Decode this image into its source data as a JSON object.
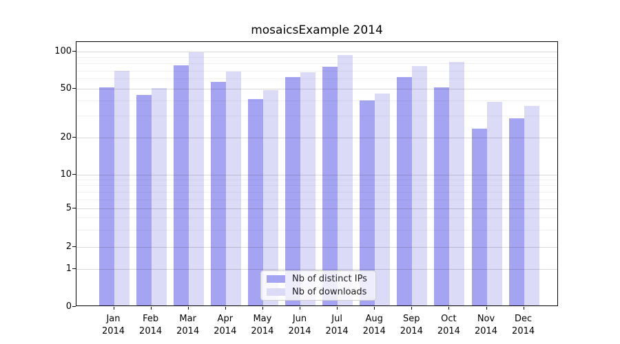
{
  "title": "mosaicsExample 2014",
  "colors": {
    "ips_bar": "#a4a4f2",
    "downloads_bar": "#dbdbf8",
    "axis": "#000000"
  },
  "legend": {
    "items": [
      {
        "label": "Nb of distinct IPs",
        "series_key": "ips"
      },
      {
        "label": "Nb of downloads",
        "series_key": "downloads"
      }
    ]
  },
  "chart_data": {
    "type": "bar",
    "title": "mosaicsExample 2014",
    "categories": [
      "Jan 2014",
      "Feb 2014",
      "Mar 2014",
      "Apr 2014",
      "May 2014",
      "Jun 2014",
      "Jul 2014",
      "Aug 2014",
      "Sep 2014",
      "Oct 2014",
      "Nov 2014",
      "Dec 2014"
    ],
    "x_tick_top_lines": [
      "Jan",
      "Feb",
      "Mar",
      "Apr",
      "May",
      "Jun",
      "Jul",
      "Aug",
      "Sep",
      "Oct",
      "Nov",
      "Dec"
    ],
    "x_tick_bottom_line": "2014",
    "series": [
      {
        "name": "Nb of distinct IPs",
        "color": "#a4a4f2",
        "values": [
          50,
          43,
          75,
          55,
          40,
          60,
          73,
          39,
          60,
          50,
          23,
          28
        ]
      },
      {
        "name": "Nb of downloads",
        "color": "#dbdbf8",
        "values": [
          68,
          49,
          96,
          67,
          47,
          66,
          91,
          44,
          74,
          80,
          38,
          35
        ]
      }
    ],
    "yscale": "log-like with 0 baseline (symlog)",
    "ytick_labels": [
      "100",
      "50",
      "20",
      "10",
      "5",
      "2",
      "1",
      "0"
    ],
    "yticks": [
      100,
      50,
      20,
      10,
      5,
      2,
      1,
      0
    ],
    "ylim": [
      0,
      112
    ],
    "grid": true,
    "minor_grid": true,
    "legend_position": "lower center"
  }
}
